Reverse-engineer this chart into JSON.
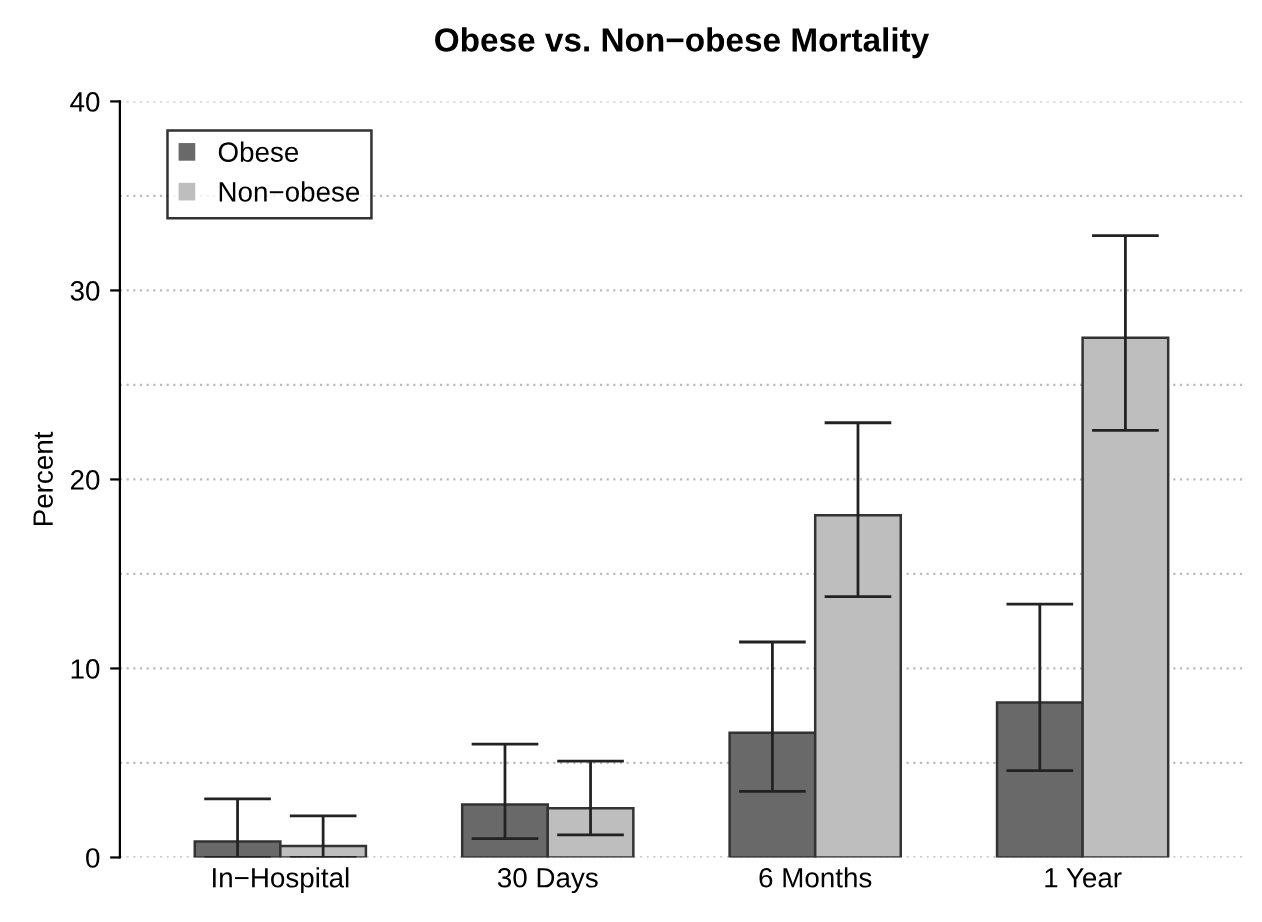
{
  "chart_data": {
    "type": "bar",
    "title": "Obese vs. Non−obese Mortality",
    "ylabel": "Percent",
    "categories": [
      "In−Hospital",
      "30 Days",
      "6 Months",
      "1 Year"
    ],
    "series": [
      {
        "name": "Obese",
        "color": "#696969",
        "values": [
          0.85,
          2.8,
          6.6,
          8.2
        ],
        "errors": [
          [
            0,
            3.1
          ],
          [
            1.0,
            6.0
          ],
          [
            3.5,
            11.4
          ],
          [
            4.6,
            13.4
          ]
        ]
      },
      {
        "name": "Non−obese",
        "color": "#bebebe",
        "values": [
          0.6,
          2.6,
          18.1,
          27.5
        ],
        "errors": [
          [
            0,
            2.2
          ],
          [
            1.2,
            5.1
          ],
          [
            13.8,
            23.0
          ],
          [
            22.6,
            32.9
          ]
        ]
      }
    ],
    "ylim": [
      0,
      40
    ],
    "yticks": [
      0,
      {
        "value": 5,
        "label": null
      },
      10,
      {
        "value": 15,
        "label": null
      },
      20,
      {
        "value": 25,
        "label": null
      },
      30,
      {
        "value": 35,
        "label": null
      },
      40
    ],
    "grid": "y",
    "legend": "top left"
  }
}
